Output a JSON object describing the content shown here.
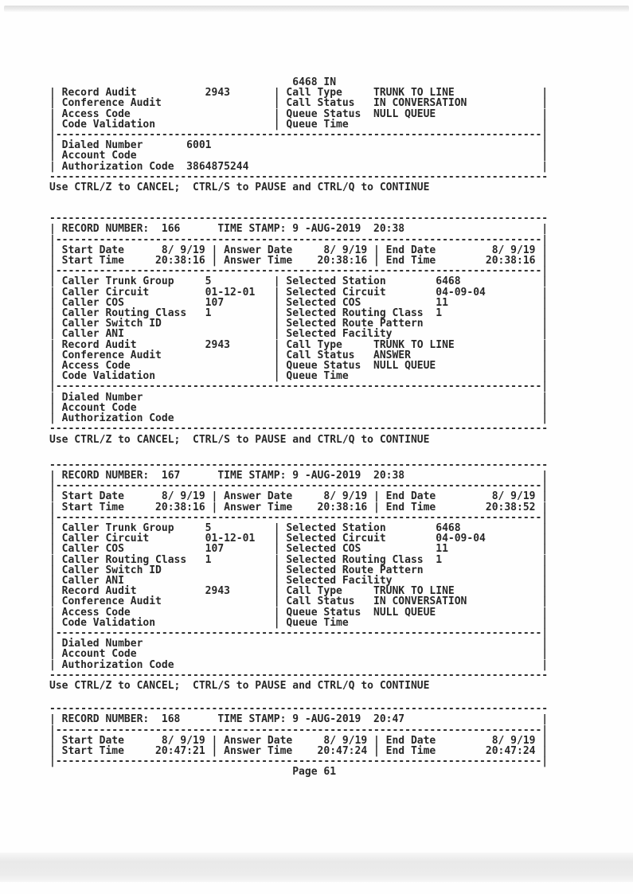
{
  "page": {
    "background": "#ffffff",
    "text_color": "#272727",
    "scan_band_color": "#e9e9e9"
  },
  "prompt": {
    "text": "Use CTRL/Z to CANCEL;  CTRL/S to PAUSE and CTRL/Q to CONTINUE"
  },
  "footer": {
    "text": "Page 61"
  },
  "records_summary": [
    {
      "header_fragment": "6468 IN",
      "record_audit": "2943",
      "call_type": "TRUNK TO LINE",
      "call_status": "IN CONVERSATION",
      "queue_status": "NULL QUEUE",
      "dialed_number": "6001",
      "authorization_code": "3864875244"
    },
    {
      "record_number": "166",
      "time_stamp": "9 -AUG-2019  20:38",
      "start_date": "8/ 9/19",
      "start_time": "20:38:16",
      "answer_date": "8/ 9/19",
      "answer_time": "20:38:16",
      "end_date": "8/ 9/19",
      "end_time": "20:38:16",
      "caller_trunk_group": "5",
      "caller_circuit": "01-12-01",
      "caller_cos": "107",
      "caller_routing_class": "1",
      "record_audit": "2943",
      "selected_station": "6468",
      "selected_circuit": "04-09-04",
      "selected_cos": "11",
      "selected_routing_class": "1",
      "call_type": "TRUNK TO LINE",
      "call_status": "ANSWER",
      "queue_status": "NULL QUEUE"
    },
    {
      "record_number": "167",
      "time_stamp": "9 -AUG-2019  20:38",
      "start_date": "8/ 9/19",
      "start_time": "20:38:16",
      "answer_date": "8/ 9/19",
      "answer_time": "20:38:16",
      "end_date": "8/ 9/19",
      "end_time": "20:38:52",
      "caller_trunk_group": "5",
      "caller_circuit": "01-12-01",
      "caller_cos": "107",
      "caller_routing_class": "1",
      "record_audit": "2943",
      "selected_station": "6468",
      "selected_circuit": "04-09-04",
      "selected_cos": "11",
      "selected_routing_class": "1",
      "call_type": "TRUNK TO LINE",
      "call_status": "IN CONVERSATION",
      "queue_status": "NULL QUEUE"
    },
    {
      "record_number": "168",
      "time_stamp": "9 -AUG-2019  20:47",
      "start_date": "8/ 9/19",
      "start_time": "20:47:21",
      "answer_date": "8/ 9/19",
      "answer_time": "20:47:24",
      "end_date": "8/ 9/19",
      "end_time": "20:47:24"
    }
  ],
  "sections": {
    "partial_top": {
      "lines": [
        "                                       6468 IN",
        "| Record Audit           2943       | Call Type     TRUNK TO LINE              |",
        "| Conference Audit                  | Call Status   IN CONVERSATION            |",
        "| Access Code                       | Queue Status  NULL QUEUE                 |",
        "| Code Validation                   | Queue Time                               |",
        "|------------------------------------------------------------------------------|",
        "| Dialed Number       6001                                                     |",
        "| Account Code                                                                 |",
        "| Authorization Code  3864875244                                               |",
        "--------------------------------------------------------------------------------"
      ]
    },
    "record_166": {
      "lines": [
        "--------------------------------------------------------------------------------",
        "| RECORD NUMBER:  166      TIME STAMP: 9 -AUG-2019  20:38                      |",
        "|------------------------------------------------------------------------------|",
        "| Start Date      8/ 9/19 | Answer Date     8/ 9/19 | End Date         8/ 9/19 |",
        "| Start Time     20:38:16 | Answer Time    20:38:16 | End Time        20:38:16 |",
        "|------------------------------------------------------------------------------|",
        "| Caller Trunk Group     5          | Selected Station        6468             |",
        "| Caller Circuit         01-12-01   | Selected Circuit        04-09-04         |",
        "| Caller COS             107        | Selected COS            11               |",
        "| Caller Routing Class   1          | Selected Routing Class  1                |",
        "| Caller Switch ID                  | Selected Route Pattern                   |",
        "| Caller ANI                        | Selected Facility                        |",
        "| Record Audit           2943       | Call Type     TRUNK TO LINE              |",
        "| Conference Audit                  | Call Status   ANSWER                     |",
        "| Access Code                       | Queue Status  NULL QUEUE                 |",
        "| Code Validation                   | Queue Time                               |",
        "|------------------------------------------------------------------------------|",
        "| Dialed Number                                                                |",
        "| Account Code                                                                 |",
        "| Authorization Code                                                           |",
        "--------------------------------------------------------------------------------"
      ]
    },
    "record_167": {
      "lines": [
        "--------------------------------------------------------------------------------",
        "| RECORD NUMBER:  167      TIME STAMP: 9 -AUG-2019  20:38                      |",
        "|------------------------------------------------------------------------------|",
        "| Start Date      8/ 9/19 | Answer Date     8/ 9/19 | End Date         8/ 9/19 |",
        "| Start Time     20:38:16 | Answer Time    20:38:16 | End Time        20:38:52 |",
        "|------------------------------------------------------------------------------|",
        "| Caller Trunk Group     5          | Selected Station        6468             |",
        "| Caller Circuit         01-12-01   | Selected Circuit        04-09-04         |",
        "| Caller COS             107        | Selected COS            11               |",
        "| Caller Routing Class   1          | Selected Routing Class  1                |",
        "| Caller Switch ID                  | Selected Route Pattern                   |",
        "| Caller ANI                        | Selected Facility                        |",
        "| Record Audit           2943       | Call Type     TRUNK TO LINE              |",
        "| Conference Audit                  | Call Status   IN CONVERSATION            |",
        "| Access Code                       | Queue Status  NULL QUEUE                 |",
        "| Code Validation                   | Queue Time                               |",
        "|------------------------------------------------------------------------------|",
        "| Dialed Number                                                                |",
        "| Account Code                                                                 |",
        "| Authorization Code                                                           |",
        "--------------------------------------------------------------------------------"
      ]
    },
    "record_168_partial": {
      "lines": [
        "--------------------------------------------------------------------------------",
        "| RECORD NUMBER:  168      TIME STAMP: 9 -AUG-2019  20:47                      |",
        "|------------------------------------------------------------------------------|",
        "| Start Date      8/ 9/19 | Answer Date     8/ 9/19 | End Date         8/ 9/19 |",
        "| Start Time     20:47:21 | Answer Time    20:47:24 | End Time        20:47:24 |",
        "|------------------------------------------------------------------------------|"
      ]
    }
  }
}
